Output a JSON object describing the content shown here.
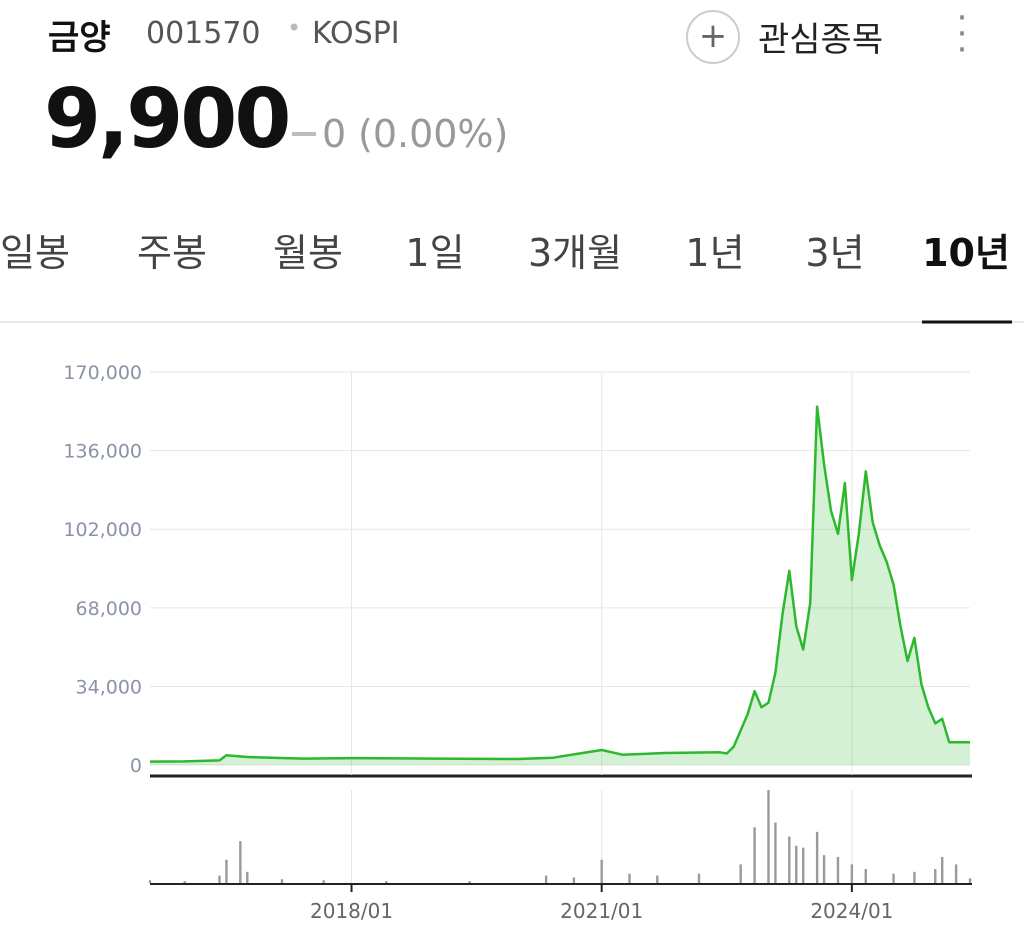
{
  "header": {
    "name": "금양",
    "code": "001570",
    "market": "KOSPI",
    "watch": "관심종목",
    "price": "9,900",
    "change": "0",
    "change_pct": "(0.00%)"
  },
  "tabs": [
    "일봉",
    "주봉",
    "월봉",
    "1일",
    "3개월",
    "1년",
    "3년",
    "10년"
  ],
  "chart_data": [
    {
      "type": "area",
      "color": "#2db82d",
      "x": [
        "2015/08",
        "2016/01",
        "2016/06",
        "2016/07",
        "2016/10",
        "2017/06",
        "2018/01",
        "2019/01",
        "2020/01",
        "2020/06",
        "2020/09",
        "2021/01",
        "2021/04",
        "2021/10",
        "2022/06",
        "2022/07",
        "2022/08",
        "2022/09",
        "2022/10",
        "2022/11",
        "2022/12",
        "2023/01",
        "2023/02",
        "2023/03",
        "2023/04",
        "2023/05",
        "2023/06",
        "2023/07",
        "2023/08",
        "2023/09",
        "2023/10",
        "2023/11",
        "2023/12",
        "2024/01",
        "2024/02",
        "2024/03",
        "2024/04",
        "2024/05",
        "2024/06",
        "2024/07",
        "2024/08",
        "2024/09",
        "2024/10",
        "2024/11",
        "2024/12",
        "2025/01",
        "2025/02",
        "2025/03",
        "2025/04",
        "2025/05",
        "2025/06"
      ],
      "values": [
        1500,
        1600,
        2000,
        4200,
        3500,
        2800,
        3000,
        2800,
        2600,
        3200,
        4600,
        6500,
        4500,
        5200,
        5500,
        5000,
        8000,
        15000,
        22000,
        32000,
        25000,
        27000,
        40000,
        65000,
        84000,
        60000,
        50000,
        70000,
        155000,
        130000,
        110000,
        100000,
        122000,
        80000,
        100000,
        127000,
        105000,
        95000,
        88000,
        78000,
        60000,
        45000,
        55000,
        35000,
        25000,
        18000,
        20000,
        9900,
        9900,
        9900,
        9900
      ],
      "xlim": [
        "2015/08",
        "2025/06"
      ],
      "xticks": [
        "2018/01",
        "2021/01",
        "2024/01"
      ],
      "ylim": [
        -4300,
        170000
      ],
      "yticks": [
        0,
        {
          "value": 34000,
          "label": "34,000"
        },
        {
          "value": 68000,
          "label": "68,000"
        },
        {
          "value": 102000,
          "label": "102,000"
        },
        {
          "value": 136000,
          "label": "136,000"
        },
        {
          "value": 170000,
          "label": "170,000"
        }
      ],
      "grid": true
    },
    {
      "type": "bar",
      "color": "#9a9a9a",
      "x": [
        "2015/08",
        "2016/01",
        "2016/06",
        "2016/07",
        "2016/09",
        "2016/10",
        "2017/03",
        "2017/09",
        "2018/06",
        "2019/06",
        "2020/05",
        "2020/09",
        "2021/01",
        "2021/05",
        "2021/09",
        "2022/03",
        "2022/09",
        "2022/11",
        "2023/01",
        "2023/02",
        "2023/04",
        "2023/05",
        "2023/06",
        "2023/08",
        "2023/09",
        "2023/11",
        "2024/01",
        "2024/03",
        "2024/07",
        "2024/10",
        "2025/01",
        "2025/02",
        "2025/04",
        "2025/06"
      ],
      "values": [
        3,
        2,
        8,
        25,
        45,
        12,
        4,
        3,
        2,
        2,
        8,
        6,
        25,
        10,
        8,
        10,
        20,
        60,
        100,
        65,
        50,
        40,
        38,
        55,
        30,
        28,
        20,
        15,
        10,
        12,
        15,
        28,
        20,
        5
      ],
      "ylim": [
        0,
        100
      ]
    }
  ]
}
